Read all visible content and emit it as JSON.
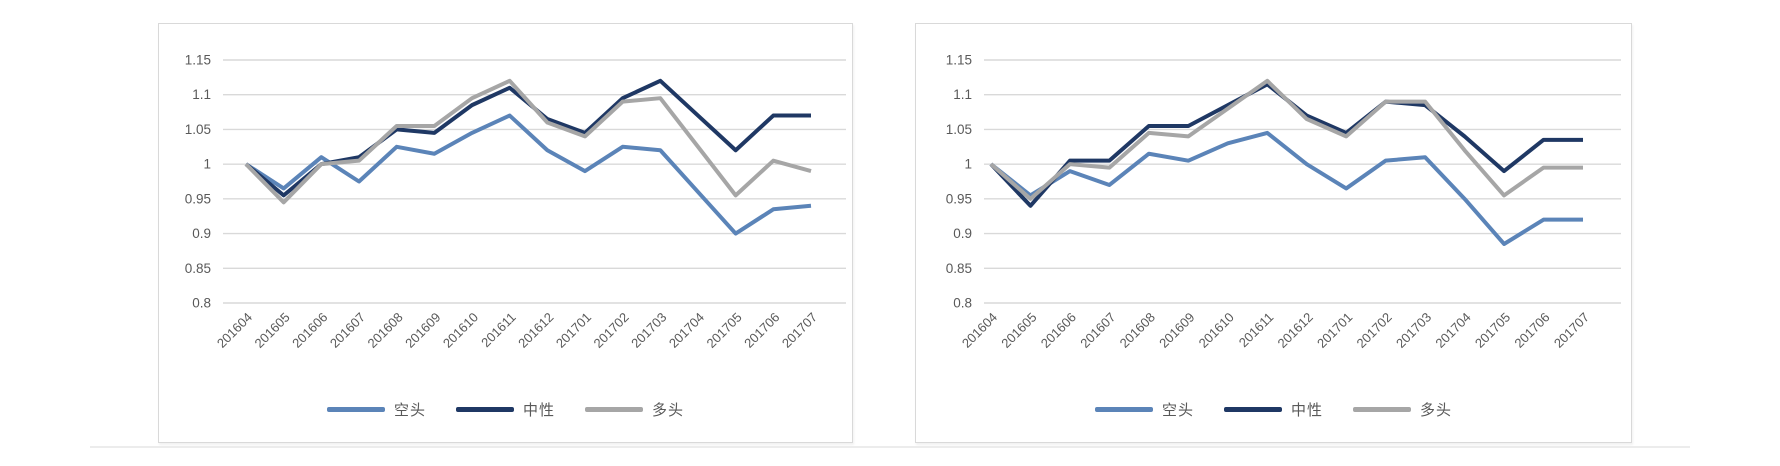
{
  "chart_data": [
    {
      "name": "left-chart",
      "type": "line",
      "categories": [
        "201604",
        "201605",
        "201606",
        "201607",
        "201608",
        "201609",
        "201610",
        "201611",
        "201612",
        "201701",
        "201702",
        "201703",
        "201704",
        "201705",
        "201706",
        "201707"
      ],
      "series": [
        {
          "name": "空头",
          "color": "#5b84b8",
          "values": [
            1.0,
            0.965,
            1.01,
            0.975,
            1.025,
            1.015,
            1.045,
            1.07,
            1.02,
            0.99,
            1.025,
            1.02,
            0.96,
            0.9,
            0.935,
            0.94
          ]
        },
        {
          "name": "中性",
          "color": "#1f3864",
          "values": [
            1.0,
            0.955,
            1.0,
            1.01,
            1.05,
            1.045,
            1.085,
            1.11,
            1.065,
            1.045,
            1.095,
            1.12,
            1.07,
            1.02,
            1.07,
            1.07
          ]
        },
        {
          "name": "多头",
          "color": "#a6a6a6",
          "values": [
            1.0,
            0.945,
            1.0,
            1.005,
            1.055,
            1.055,
            1.095,
            1.12,
            1.06,
            1.04,
            1.09,
            1.095,
            1.025,
            0.955,
            1.005,
            0.99
          ]
        }
      ],
      "title": "",
      "xlabel": "",
      "ylabel": "",
      "ylim": [
        0.8,
        1.15
      ],
      "ytick_step": 0.05,
      "ytick_labels": [
        "1.15",
        "1.1",
        "1.05",
        "1",
        "0.95",
        "0.9",
        "0.85",
        "0.8"
      ],
      "grid": true,
      "legend_position": "bottom"
    },
    {
      "name": "right-chart",
      "type": "line",
      "categories": [
        "201604",
        "201605",
        "201606",
        "201607",
        "201608",
        "201609",
        "201610",
        "201611",
        "201612",
        "201701",
        "201702",
        "201703",
        "201704",
        "201705",
        "201706",
        "201707"
      ],
      "series": [
        {
          "name": "空头",
          "color": "#5b84b8",
          "values": [
            1.0,
            0.955,
            0.99,
            0.97,
            1.015,
            1.005,
            1.03,
            1.045,
            1.0,
            0.965,
            1.005,
            1.01,
            0.95,
            0.885,
            0.92,
            0.92
          ]
        },
        {
          "name": "中性",
          "color": "#1f3864",
          "values": [
            1.0,
            0.94,
            1.005,
            1.005,
            1.055,
            1.055,
            1.085,
            1.115,
            1.07,
            1.045,
            1.09,
            1.085,
            1.04,
            0.99,
            1.035,
            1.035
          ]
        },
        {
          "name": "多头",
          "color": "#a6a6a6",
          "values": [
            1.0,
            0.95,
            1.0,
            0.995,
            1.045,
            1.04,
            1.08,
            1.12,
            1.065,
            1.04,
            1.09,
            1.09,
            1.02,
            0.955,
            0.995,
            0.995
          ]
        }
      ],
      "title": "",
      "xlabel": "",
      "ylabel": "",
      "ylim": [
        0.8,
        1.15
      ],
      "ytick_step": 0.05,
      "ytick_labels": [
        "1.15",
        "1.1",
        "1.05",
        "1",
        "0.95",
        "0.9",
        "0.85",
        "0.8"
      ],
      "grid": true,
      "legend_position": "bottom"
    }
  ]
}
